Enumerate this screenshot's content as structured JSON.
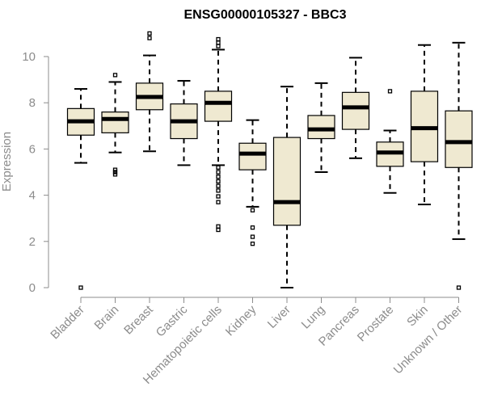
{
  "chart_data": {
    "type": "boxplot",
    "title": "ENSG00000105327 - BBC3",
    "xlabel": "",
    "ylabel": "Expression",
    "ylim": [
      0,
      10.6
    ],
    "yticks": [
      "0",
      "2",
      "4",
      "6",
      "8",
      "10"
    ],
    "grid": false,
    "box_color": "#efe9d1",
    "categories": [
      "Bladder",
      "Brain",
      "Breast",
      "Gastric",
      "Hematopoietic cells",
      "Kidney",
      "Liver",
      "Lung",
      "Pancreas",
      "Prostate",
      "Skin",
      "Unknown / Other"
    ],
    "boxes": [
      {
        "min": 5.4,
        "q1": 6.6,
        "median": 7.2,
        "q3": 7.75,
        "max": 8.6,
        "outliers": [
          0.0
        ]
      },
      {
        "min": 5.85,
        "q1": 6.7,
        "median": 7.3,
        "q3": 7.6,
        "max": 8.9,
        "outliers": [
          9.2,
          5.1,
          5.0,
          4.9
        ]
      },
      {
        "min": 5.9,
        "q1": 7.7,
        "median": 8.25,
        "q3": 8.85,
        "max": 10.05,
        "outliers": [
          10.8,
          11.0
        ]
      },
      {
        "min": 5.3,
        "q1": 6.45,
        "median": 7.2,
        "q3": 7.95,
        "max": 8.95,
        "outliers": []
      },
      {
        "min": 5.3,
        "q1": 7.2,
        "median": 8.0,
        "q3": 8.5,
        "max": 10.3,
        "outliers": [
          10.75,
          10.6,
          10.45,
          5.2,
          5.0,
          4.8,
          4.6,
          4.4,
          4.2,
          3.95,
          3.7,
          2.65,
          2.5
        ]
      },
      {
        "min": 3.5,
        "q1": 5.1,
        "median": 5.8,
        "q3": 6.25,
        "max": 7.25,
        "outliers": [
          3.35,
          2.6,
          2.2,
          1.9
        ]
      },
      {
        "min": 0.0,
        "q1": 2.7,
        "median": 3.7,
        "q3": 6.5,
        "max": 8.7,
        "outliers": []
      },
      {
        "min": 5.0,
        "q1": 6.45,
        "median": 6.85,
        "q3": 7.45,
        "max": 8.85,
        "outliers": []
      },
      {
        "min": 5.6,
        "q1": 6.85,
        "median": 7.8,
        "q3": 8.45,
        "max": 9.95,
        "outliers": []
      },
      {
        "min": 4.1,
        "q1": 5.25,
        "median": 5.85,
        "q3": 6.3,
        "max": 6.8,
        "outliers": [
          8.5
        ]
      },
      {
        "min": 3.6,
        "q1": 5.45,
        "median": 6.9,
        "q3": 8.5,
        "max": 10.5,
        "outliers": []
      },
      {
        "min": 2.1,
        "q1": 5.2,
        "median": 6.3,
        "q3": 7.65,
        "max": 10.6,
        "outliers": [
          0.0
        ]
      }
    ]
  }
}
